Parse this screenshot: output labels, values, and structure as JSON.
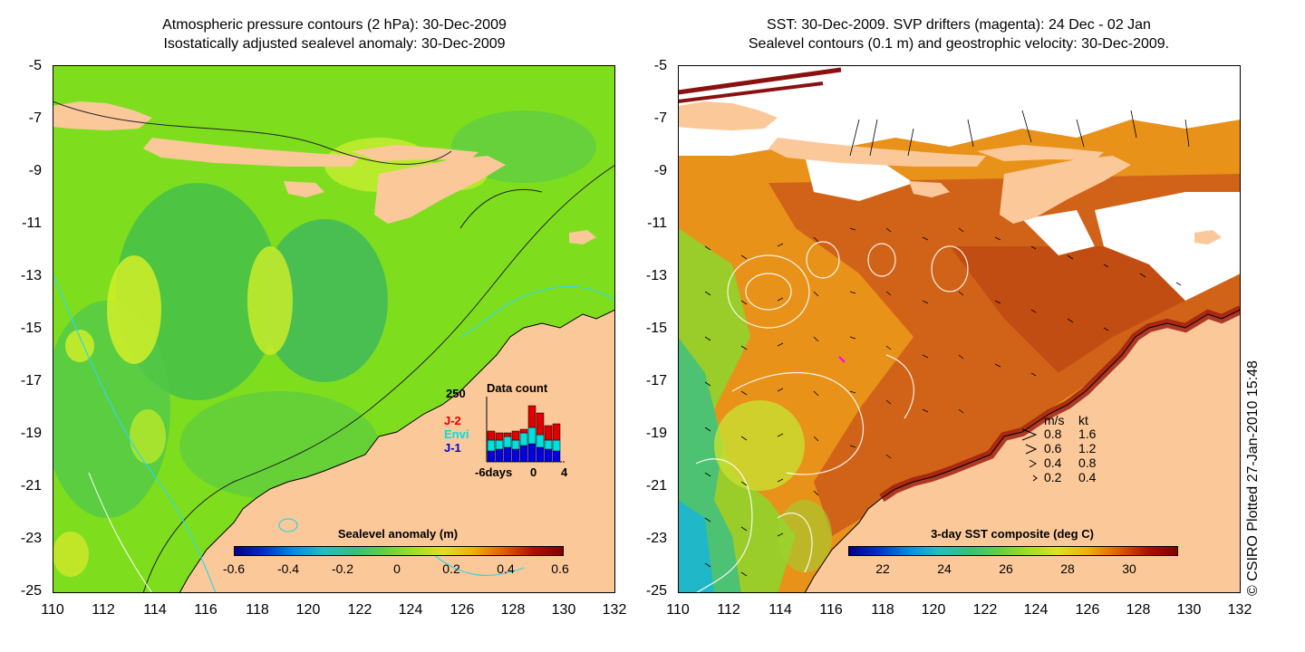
{
  "left_panel": {
    "title_line1": "Atmospheric pressure contours (2 hPa): 30-Dec-2009",
    "title_line2": "Isostatically adjusted sealevel anomaly: 30-Dec-2009",
    "colorbar_title": "Sealevel anomaly (m)",
    "colorbar_ticks": [
      "-0.6",
      "-0.4",
      "-0.2",
      "0",
      "0.2",
      "0.4",
      "0.6"
    ],
    "inset": {
      "title": "Data count",
      "y_max_label": "250",
      "x_labels": [
        "-6days",
        "0",
        "4"
      ],
      "legend": [
        {
          "label": "J-2",
          "color": "#e00000"
        },
        {
          "label": "Envi",
          "color": "#00e0e0"
        },
        {
          "label": "J-1",
          "color": "#0000e0"
        }
      ]
    }
  },
  "right_panel": {
    "title_line1": "SST: 30-Dec-2009. SVP drifters (magenta): 24 Dec - 02 Jan",
    "title_line2": "Sealevel contours (0.1 m) and geostrophic velocity: 30-Dec-2009.",
    "colorbar_title": "3-day SST composite (deg C)",
    "colorbar_ticks": [
      "22",
      "24",
      "26",
      "28",
      "30"
    ],
    "velocity_legend": {
      "header_ms": "m/s",
      "header_kt": "kt",
      "rows": [
        {
          "ms": "0.8",
          "kt": "1.6"
        },
        {
          "ms": "0.6",
          "kt": "1.2"
        },
        {
          "ms": "0.4",
          "kt": "0.8"
        },
        {
          "ms": "0.2",
          "kt": "0.4"
        }
      ]
    }
  },
  "axes": {
    "y_ticks": [
      "-5",
      "-7",
      "-9",
      "-11",
      "-13",
      "-15",
      "-17",
      "-19",
      "-21",
      "-23",
      "-25"
    ],
    "x_ticks": [
      "110",
      "112",
      "114",
      "116",
      "118",
      "120",
      "122",
      "124",
      "126",
      "128",
      "130",
      "132"
    ]
  },
  "credit": "© CSIRO Plotted 27-Jan-2010 15:48",
  "colors": {
    "land": "#fbc89a",
    "sla_base": "#7ede1e",
    "sst_base": "#e8921a",
    "cloud": "#ffffff"
  }
}
